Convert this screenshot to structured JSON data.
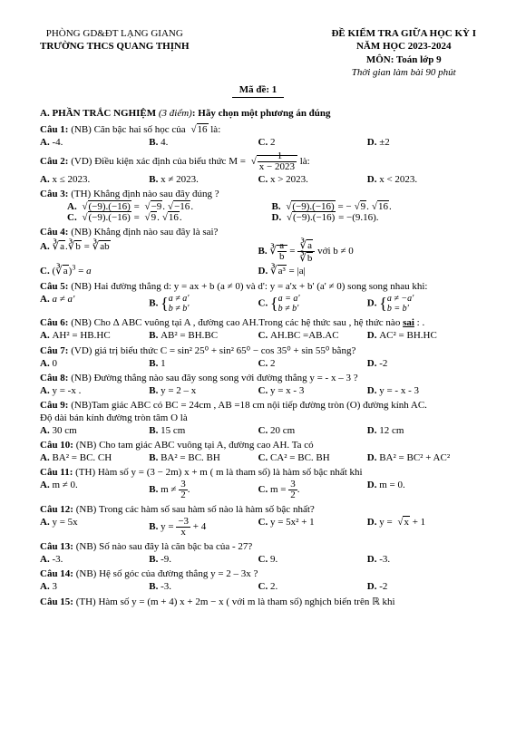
{
  "hdr": {
    "l1": "PHÒNG GD&ĐT LẠNG GIANG",
    "l2": "TRƯỜNG THCS QUANG THỊNH",
    "r1": "ĐỀ KIỂM TRA GIỮA HỌC KỲ I",
    "r2": "NĂM HỌC 2023-2024",
    "r3": "MÔN: Toán lớp 9",
    "r4": "Thời gian làm bài 90 phút",
    "code": "Mã đề: 1"
  },
  "secA": "A. PHẦN TRẮC NGHIỆM",
  "secAi": " (3  điểm)",
  "secAt": ": Hãy chọn một phương án đúng",
  "q1": {
    "t": "Câu 1:",
    "d": " (NB) Căn bậc hai số học của ",
    "v": "16",
    "e": "  là:",
    "a": "-4.",
    "b": "4.",
    "c": "2",
    "d2": "±2"
  },
  "q2": {
    "t": "Câu 2:",
    "d": " (VD) Điều kiện xác định của biểu thức  M = ",
    "e": " là:",
    "fn": "−1",
    "fd": "x − 2023",
    "a": "x ≤ 2023.",
    "b": "x ≠ 2023.",
    "c": "x > 2023.",
    "d2": "x < 2023."
  },
  "q3": {
    "t": "Câu 3:",
    "d": " (TH) Khẳng định nào sau đây đúng ?"
  },
  "q4": {
    "t": "Câu 4:",
    "d": " (NB) Khẳng định nào sau đây là sai?"
  },
  "q5": {
    "t": "Câu 5:",
    "d": " (NB) Hai đường thẳng d: y = ax + b (a ≠ 0) và d': y = a'x + b' (a' ≠ 0) song song nhau khi:"
  },
  "q6": {
    "t": "Câu 6:",
    "d": "  (NB) Cho  Δ ABC vuông tại A , đường cao AH.Trong các hệ thức sau , hệ thức nào ",
    "s": "sai",
    " end": " :   .",
    "a": "AH² = HB.HC",
    "b": "AB² = BH.BC",
    "c": "AH.BC =AB.AC",
    "d2": "AC² = BH.HC"
  },
  "q7": {
    "t": "Câu 7:",
    "d": " (VD) giá trị biểu thức  C = sin² 25⁰ + sin² 65⁰ − cos 35⁰ + sin 55⁰ bằng?",
    "a": "0",
    "b": "1",
    "c": "2",
    "d2": "-2"
  },
  "q8": {
    "t": "Câu 8:",
    "d": " (NB) Đường thẳng nào  sau đây song song với đường thẳng y =  - x – 3 ?",
    "a": "y = -x .",
    "b": "y = 2 – x",
    "c": "y =  x - 3",
    "d2": "y = - x  - 3"
  },
  "q9": {
    "t": "Câu 9:",
    "d": " (NB)Tam giác ABC có  BC = 24cm ,  AB =18 cm  nội tiếp đường tròn ",
    "o": "(O)",
    "e": "  đường kính AC.",
    "l2": "Độ dài bán kính đường tròn tâm O  là",
    "a": "30 cm",
    "b": "15 cm",
    "c": "20 cm",
    "d2": "12 cm"
  },
  "q10": {
    "t": "Câu 10:",
    "d": " (NB) Cho tam giác ABC vuông tại A, đường cao AH. Ta có",
    "a": "BA² = BC. CH",
    "b": "BA² = BC. BH",
    "c": "CA² = BC. BH",
    "d2": "BA² = BC² + AC²"
  },
  "q11": {
    "t": "Câu 11:",
    "d": " (TH) Hàm số  y = (3 − 2m) x + m  ( m  là tham số) là hàm số bậc nhất khi",
    "a": "m ≠ 0.",
    "d2": "m = 0."
  },
  "q12": {
    "t": "Câu 12:",
    "d": " (NB) Trong các hàm số sau hàm số nào là hàm số bậc nhất?",
    "a": "y = 5x",
    "c": "y = 5x² + 1"
  },
  "q13": {
    "t": "Câu 13:",
    "d": "  (NB) Số nào sau đây là căn bậc ba của - 27?",
    "a": "-3.",
    "b": "-9.",
    "c": "9.",
    "d2": "-3."
  },
  "q14": {
    "t": "Câu 14:",
    "d": " (NB) Hệ số góc của đường thẳng y = 2 – 3x ?",
    "a": "3",
    "b": "-3.",
    "c": "2.",
    "d2": "-2"
  },
  "q15": {
    "t": "Câu 15:",
    "d": " (TH) Hàm số  y = (m + 4) x + 2m − x  ( với  m  là tham số) nghịch biến trên  ℝ khi"
  }
}
